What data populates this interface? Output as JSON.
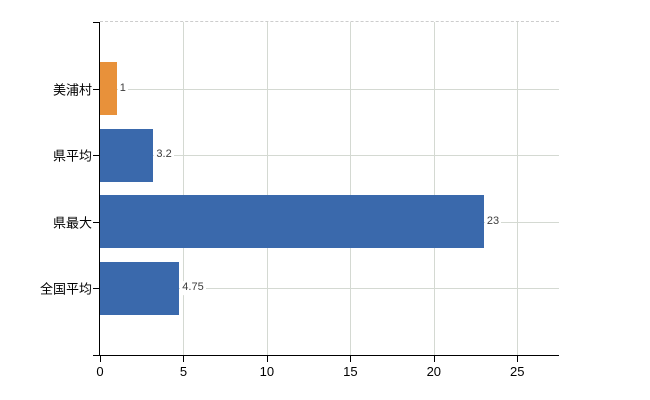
{
  "chart_data": {
    "type": "bar",
    "orientation": "horizontal",
    "title": "",
    "legend": "none",
    "grid": true,
    "categories": [
      "美浦村",
      "県平均",
      "県最大",
      "全国平均"
    ],
    "values": [
      1,
      3.2,
      23,
      4.75
    ],
    "value_labels": [
      "1",
      "3.2",
      "23",
      "4.75"
    ],
    "xlim": [
      0,
      27.5
    ],
    "x_ticks": [
      0,
      5,
      10,
      15,
      20,
      25
    ],
    "x_tick_labels": [
      "0",
      "5",
      "10",
      "15",
      "20",
      "25"
    ],
    "colors": {
      "bar_colors": [
        "#E8913A",
        "#3A69AC",
        "#3A69AC",
        "#3A69AC"
      ],
      "bar_default": "#3A69AC",
      "bar_highlight": "#E8913A",
      "gridline": "#D4D9D2",
      "plot_border": "#CDCDCD",
      "axis": "#000000",
      "value_label_text": "#3D3D3D",
      "tick_label_text": "#000000",
      "background": "#FFFFFF"
    }
  }
}
